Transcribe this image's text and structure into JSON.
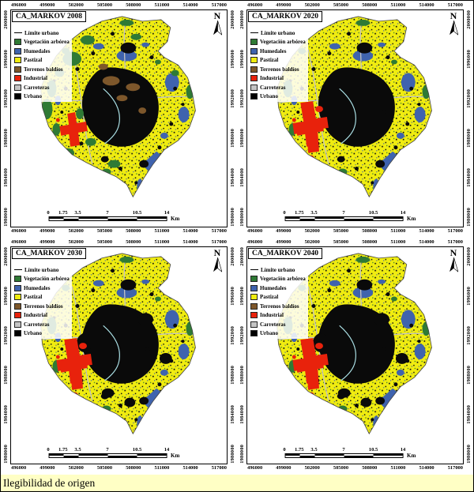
{
  "caption": "Ilegibilidad de origen",
  "north_label": "N",
  "axis": {
    "x_ticks": [
      "496000",
      "499000",
      "502000",
      "505000",
      "508000",
      "511000",
      "514000",
      "517000"
    ],
    "y_ticks": [
      "2000000",
      "1996000",
      "1992000",
      "1988000",
      "1984000",
      "1980000"
    ]
  },
  "scalebar": {
    "labels": [
      "0",
      "1.75",
      "3.5",
      "7",
      "10.5",
      "14"
    ],
    "unit": "Km"
  },
  "legend": {
    "boundary_label": "Límite urbano",
    "items": [
      {
        "label": "Vegetación arbórea",
        "color": "#2f7a35"
      },
      {
        "label": "Humedales",
        "color": "#3f63ae"
      },
      {
        "label": "Pastizal",
        "color": "#f0ec10"
      },
      {
        "label": "Terrenos baldíos",
        "color": "#7d572b"
      },
      {
        "label": "Industrial",
        "color": "#e8220c"
      },
      {
        "label": "Carreteras",
        "color": "#c4c4c4"
      },
      {
        "label": "Urbano",
        "color": "#000000"
      }
    ]
  },
  "panels": [
    {
      "title": "CA_MARKOV 2008"
    },
    {
      "title": "CA_MARKOV 2020"
    },
    {
      "title": "CA_MARKOV 2030"
    },
    {
      "title": "CA_MARKOV 2040"
    }
  ]
}
